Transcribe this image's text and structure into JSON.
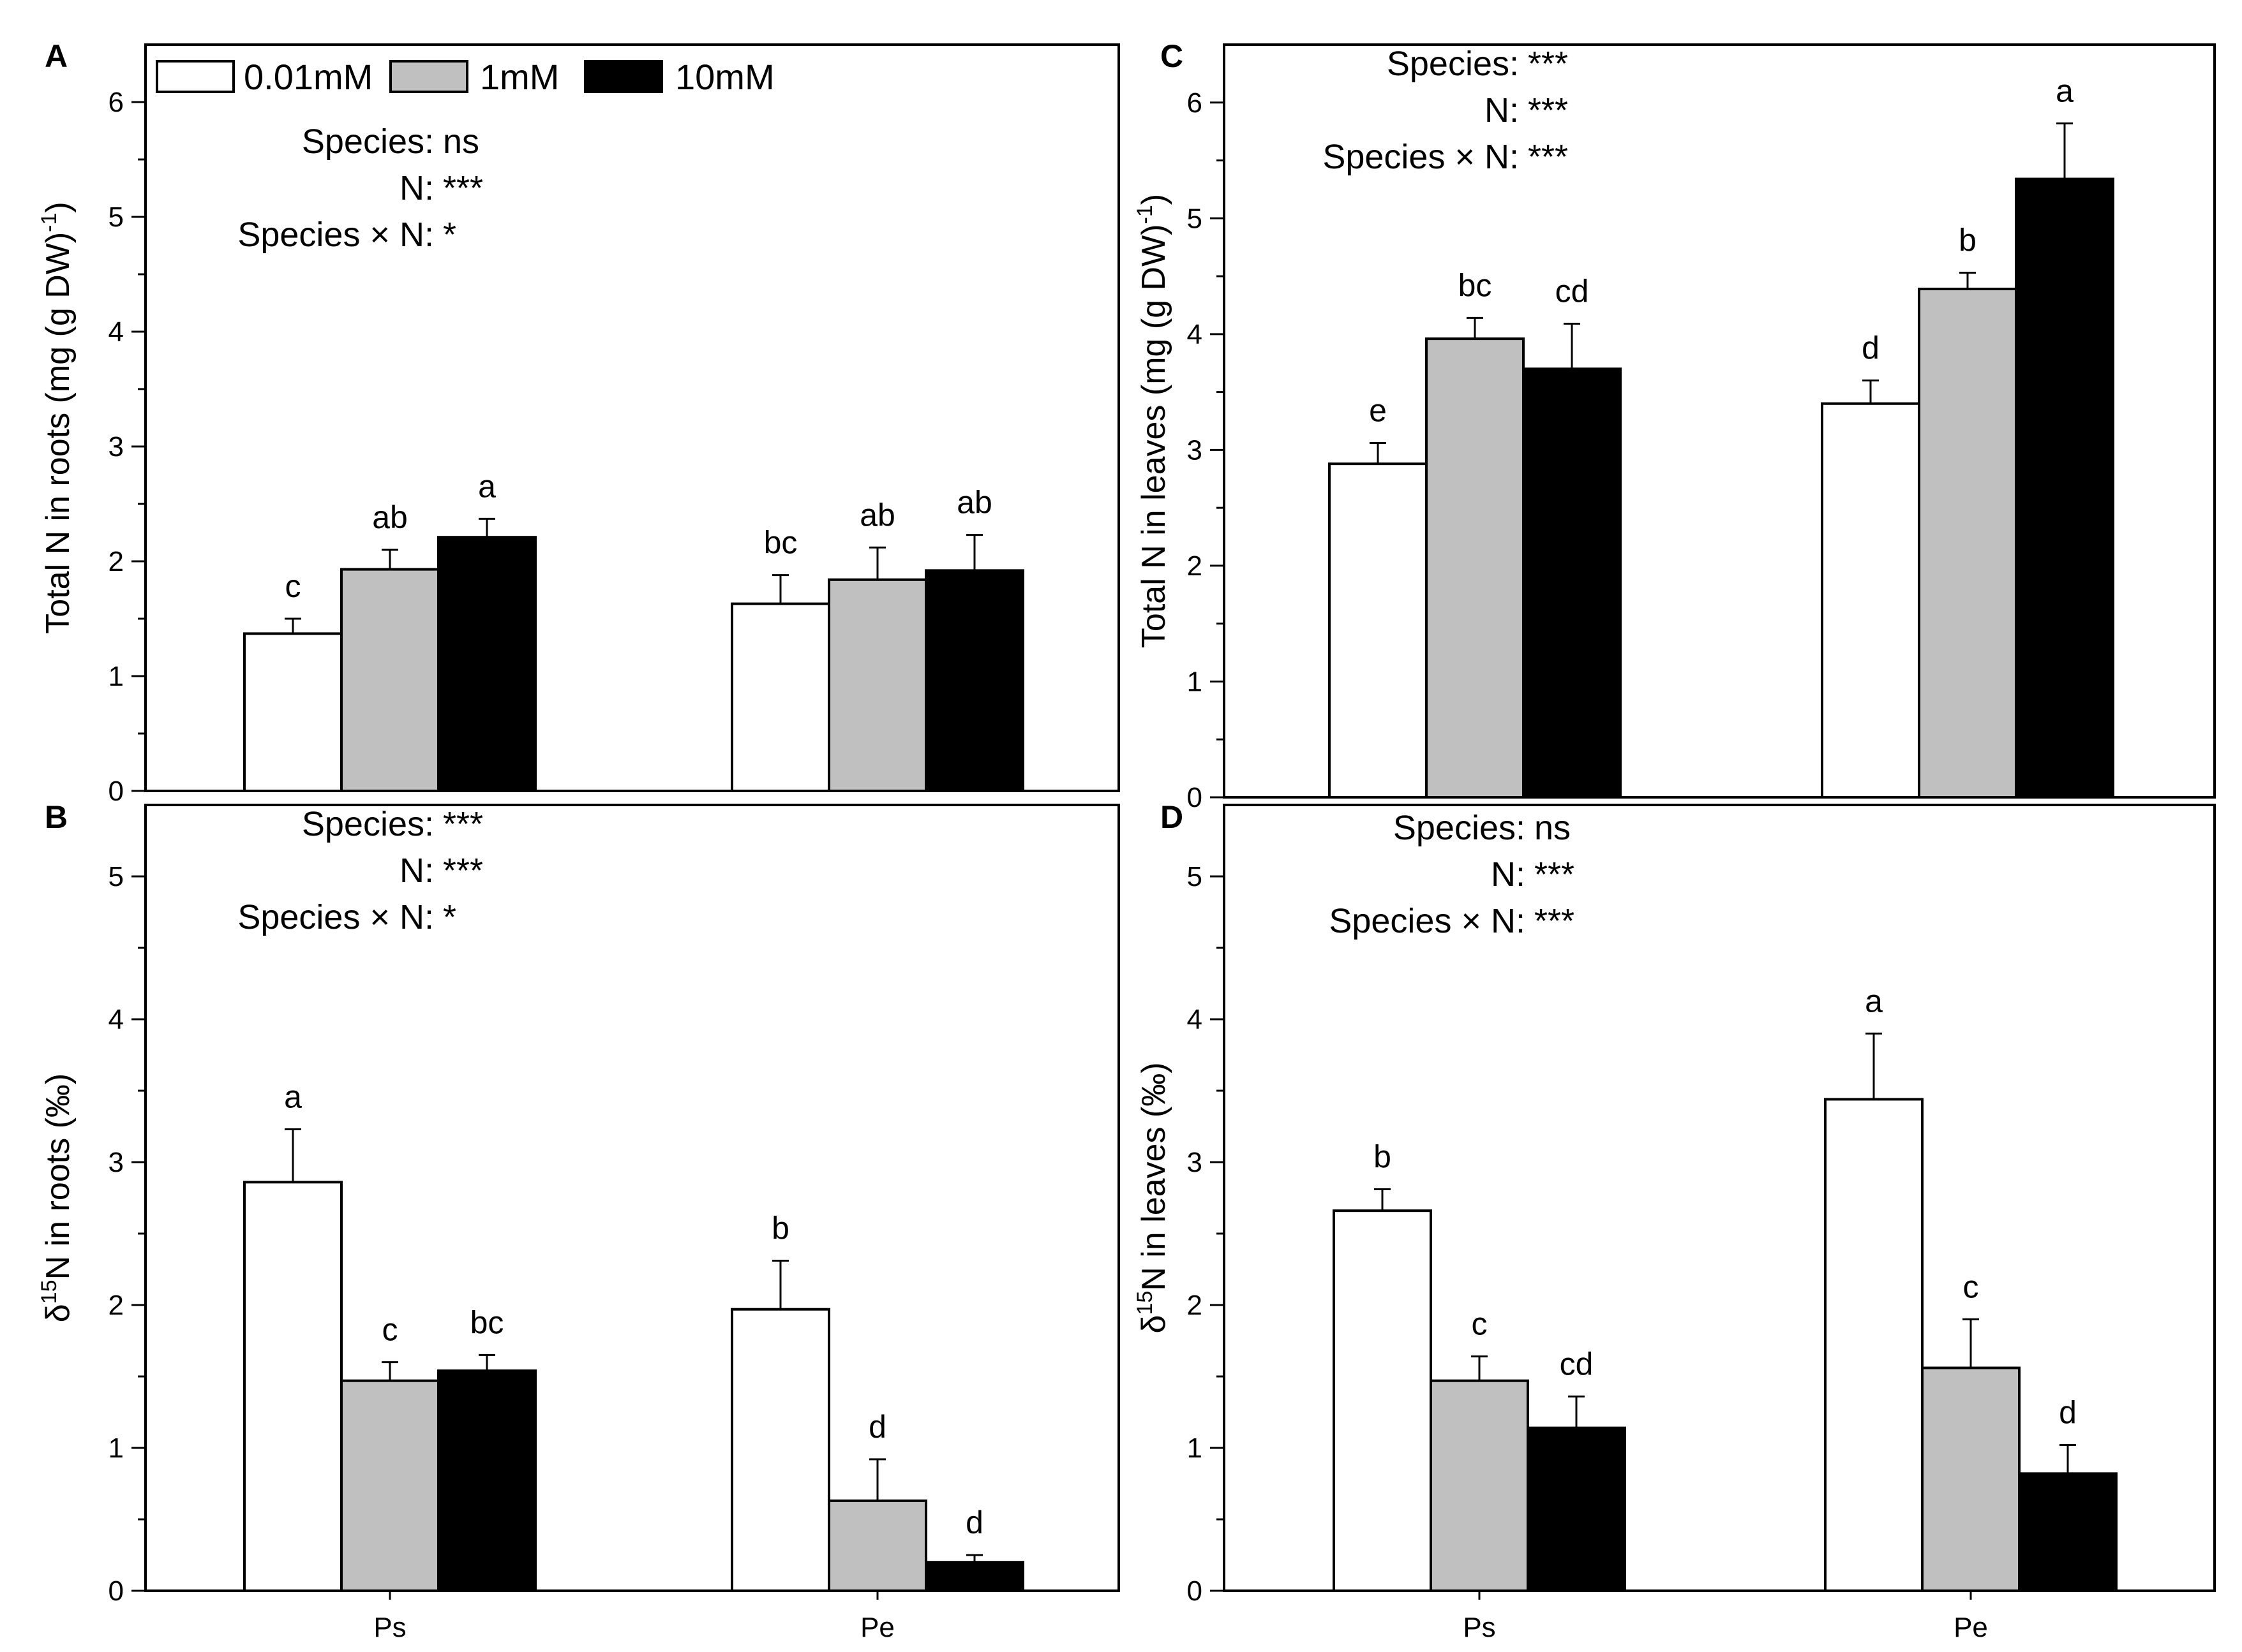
{
  "legend": {
    "entries": [
      {
        "label": "0.01mM",
        "color": "#ffffff"
      },
      {
        "label": "1mM",
        "color": "#c0c0c0"
      },
      {
        "label": "10mM",
        "color": "#000000"
      }
    ]
  },
  "chart_data": [
    {
      "panel": "A",
      "type": "bar",
      "ylabel_pre": "Total  N in roots (mg (g DW)",
      "ylabel_sup": "-1",
      "ylabel_post": ")",
      "ylabel_delta": "",
      "ylim": [
        0,
        6.5
      ],
      "yticks": [
        0,
        1,
        2,
        3,
        4,
        5,
        6
      ],
      "categories": [
        "Ps",
        "Pe"
      ],
      "show_categories": false,
      "series": [
        {
          "name": "0.01mM",
          "values": [
            1.37,
            1.63
          ],
          "errors": [
            0.13,
            0.25
          ],
          "letters": [
            "c",
            "bc"
          ]
        },
        {
          "name": "1mM",
          "values": [
            1.93,
            1.84
          ],
          "errors": [
            0.17,
            0.28
          ],
          "letters": [
            "ab",
            "ab"
          ]
        },
        {
          "name": "10mM",
          "values": [
            2.21,
            1.92
          ],
          "errors": [
            0.16,
            0.31
          ],
          "letters": [
            "a",
            "ab"
          ]
        }
      ],
      "stats": [
        {
          "label": "Species:",
          "value": "ns"
        },
        {
          "label": "N:",
          "value": "***"
        },
        {
          "label": "Species × N:",
          "value": "*"
        }
      ]
    },
    {
      "panel": "B",
      "type": "bar",
      "ylabel_pre": "",
      "ylabel_delta": "δ",
      "ylabel_sup": "15",
      "ylabel_post": "N in roots  (‰)",
      "ylim": [
        0,
        5.5
      ],
      "yticks": [
        0,
        1,
        2,
        3,
        4,
        5
      ],
      "categories": [
        "Ps",
        "Pe"
      ],
      "show_categories": true,
      "series": [
        {
          "name": "0.01mM",
          "values": [
            2.86,
            1.97
          ],
          "errors": [
            0.37,
            0.34
          ],
          "letters": [
            "a",
            "b"
          ]
        },
        {
          "name": "1mM",
          "values": [
            1.47,
            0.63
          ],
          "errors": [
            0.13,
            0.29
          ],
          "letters": [
            "c",
            "d"
          ]
        },
        {
          "name": "10mM",
          "values": [
            1.54,
            0.2
          ],
          "errors": [
            0.11,
            0.05
          ],
          "letters": [
            "bc",
            "d"
          ]
        }
      ],
      "stats": [
        {
          "label": "Species:",
          "value": "***"
        },
        {
          "label": "N:",
          "value": "***"
        },
        {
          "label": "Species × N:",
          "value": "*"
        }
      ]
    },
    {
      "panel": "C",
      "type": "bar",
      "ylabel_pre": "Total  N in leaves (mg (g DW)",
      "ylabel_sup": "-1",
      "ylabel_post": ")",
      "ylabel_delta": "",
      "ylim": [
        0,
        6.5
      ],
      "yticks": [
        0,
        1,
        2,
        3,
        4,
        5,
        6
      ],
      "categories": [
        "Ps",
        "Pe"
      ],
      "show_categories": false,
      "series": [
        {
          "name": "0.01mM",
          "values": [
            2.88,
            3.4
          ],
          "errors": [
            0.18,
            0.2
          ],
          "letters": [
            "e",
            "d"
          ]
        },
        {
          "name": "1mM",
          "values": [
            3.96,
            4.39
          ],
          "errors": [
            0.18,
            0.14
          ],
          "letters": [
            "bc",
            "b"
          ]
        },
        {
          "name": "10mM",
          "values": [
            3.7,
            5.34
          ],
          "errors": [
            0.39,
            0.48
          ],
          "letters": [
            "cd",
            "a"
          ]
        }
      ],
      "stats": [
        {
          "label": "Species:",
          "value": "***"
        },
        {
          "label": "N:",
          "value": "***"
        },
        {
          "label": "Species × N:",
          "value": "***"
        }
      ]
    },
    {
      "panel": "D",
      "type": "bar",
      "ylabel_pre": "",
      "ylabel_delta": "δ",
      "ylabel_sup": "15",
      "ylabel_post": "N in leaves  (‰)",
      "ylim": [
        0,
        5.5
      ],
      "yticks": [
        0,
        1,
        2,
        3,
        4,
        5
      ],
      "categories": [
        "Ps",
        "Pe"
      ],
      "show_categories": true,
      "series": [
        {
          "name": "0.01mM",
          "values": [
            2.66,
            3.44
          ],
          "errors": [
            0.15,
            0.46
          ],
          "letters": [
            "b",
            "a"
          ]
        },
        {
          "name": "1mM",
          "values": [
            1.47,
            1.56
          ],
          "errors": [
            0.17,
            0.34
          ],
          "letters": [
            "c",
            "c"
          ]
        },
        {
          "name": "10mM",
          "values": [
            1.14,
            0.82
          ],
          "errors": [
            0.22,
            0.2
          ],
          "letters": [
            "cd",
            "d"
          ]
        }
      ],
      "stats": [
        {
          "label": "Species:",
          "value": "ns"
        },
        {
          "label": "N:",
          "value": "***"
        },
        {
          "label": "Species × N:",
          "value": "***"
        }
      ]
    }
  ]
}
